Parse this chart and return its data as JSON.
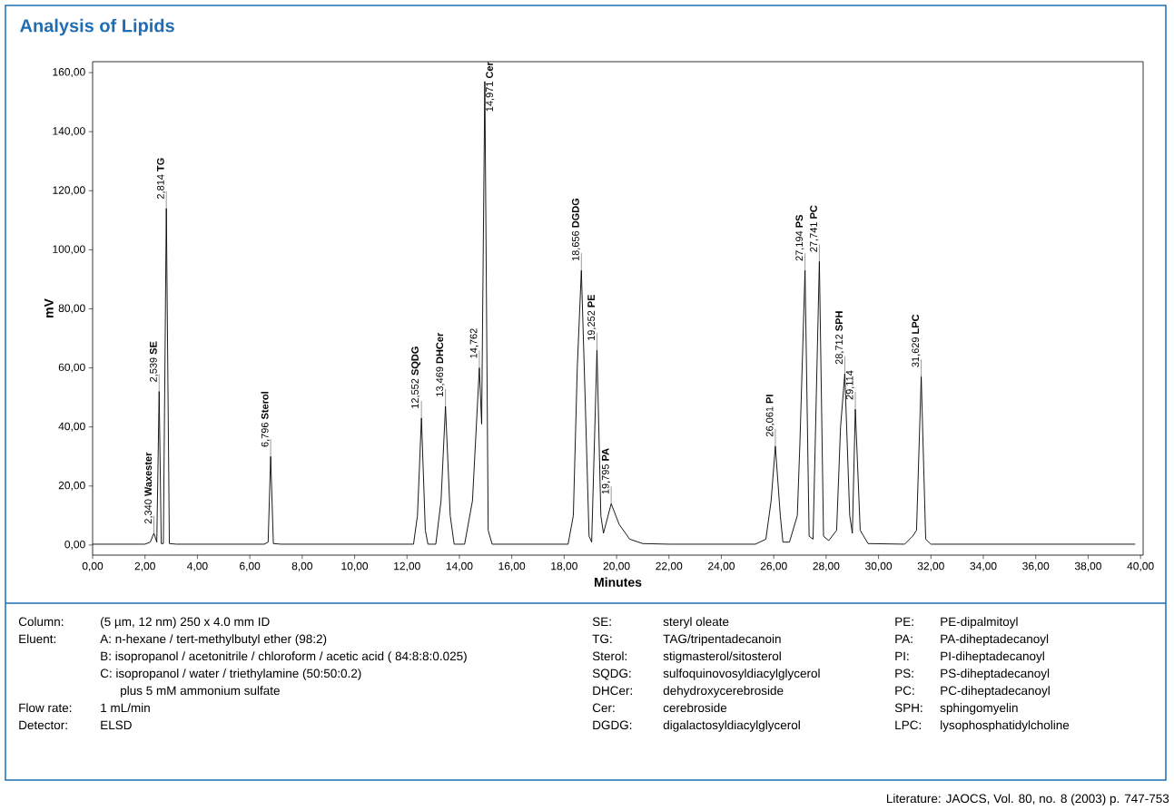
{
  "chart_data": {
    "type": "line",
    "title": "Analysis of Lipids",
    "xlabel": "Minutes",
    "ylabel": "mV",
    "color": "#000000",
    "xlim": [
      0,
      40.1
    ],
    "ylim": [
      -3.4,
      163.7
    ],
    "xticks": [
      {
        "value": 0,
        "label": "0,00"
      },
      {
        "value": 2,
        "label": "2,00"
      },
      {
        "value": 4,
        "label": "4,00"
      },
      {
        "value": 6,
        "label": "6,00"
      },
      {
        "value": 8,
        "label": "8,00"
      },
      {
        "value": 10,
        "label": "10,00"
      },
      {
        "value": 12,
        "label": "12,00"
      },
      {
        "value": 14,
        "label": "14,00"
      },
      {
        "value": 16,
        "label": "16,00"
      },
      {
        "value": 18,
        "label": "18,00"
      },
      {
        "value": 20,
        "label": "20,00"
      },
      {
        "value": 22,
        "label": "22,00"
      },
      {
        "value": 24,
        "label": "24,00"
      },
      {
        "value": 26,
        "label": "26,00"
      },
      {
        "value": 28,
        "label": "28,00"
      },
      {
        "value": 30,
        "label": "30,00"
      },
      {
        "value": 32,
        "label": "32,00"
      },
      {
        "value": 34,
        "label": "34,00"
      },
      {
        "value": 36,
        "label": "36,00"
      },
      {
        "value": 38,
        "label": "38,00"
      },
      {
        "value": 40,
        "label": "40,00"
      }
    ],
    "yticks": [
      {
        "value": 0,
        "label": "0,00"
      },
      {
        "value": 20,
        "label": "20,00"
      },
      {
        "value": 40,
        "label": "40,00"
      },
      {
        "value": 60,
        "label": "60,00"
      },
      {
        "value": 80,
        "label": "80,00"
      },
      {
        "value": 100,
        "label": "100,00"
      },
      {
        "value": 120,
        "label": "120,00"
      },
      {
        "value": 140,
        "label": "140,00"
      },
      {
        "value": 160,
        "label": "160,00"
      }
    ],
    "x": [
      0,
      2.0,
      2.2,
      2.34,
      2.45,
      2.539,
      2.62,
      2.7,
      2.814,
      2.93,
      3.2,
      6.55,
      6.7,
      6.796,
      6.9,
      7.2,
      12.25,
      12.4,
      12.552,
      12.7,
      12.8,
      13.1,
      13.3,
      13.469,
      13.65,
      13.8,
      14.2,
      14.5,
      14.762,
      14.85,
      14.971,
      15.1,
      15.25,
      18.15,
      18.35,
      18.5,
      18.656,
      18.8,
      18.95,
      19.05,
      19.252,
      19.4,
      19.5,
      19.795,
      20.1,
      20.5,
      21,
      22,
      25.3,
      25.7,
      25.9,
      26.061,
      26.25,
      26.35,
      26.6,
      26.9,
      27.0,
      27.194,
      27.35,
      27.5,
      27.741,
      27.9,
      28.1,
      28.4,
      28.55,
      28.712,
      28.9,
      29.0,
      29.114,
      29.3,
      29.6,
      31.0,
      31.3,
      31.45,
      31.629,
      31.8,
      32.0,
      39.8
    ],
    "values": [
      0.3,
      0.3,
      1,
      4,
      1,
      52,
      0.5,
      0.5,
      114,
      0.5,
      0.3,
      0.3,
      1,
      30,
      0.5,
      0.3,
      0.3,
      10,
      43,
      5,
      0.3,
      0.3,
      15,
      47,
      10,
      0.3,
      0.3,
      15,
      60,
      41,
      157,
      5,
      0.3,
      0.3,
      10,
      60,
      93,
      50,
      3,
      1,
      66,
      10,
      4,
      14,
      7,
      2,
      0.5,
      0.3,
      0.3,
      2,
      15,
      33.5,
      10,
      1,
      1,
      10,
      35,
      93,
      3,
      2,
      96,
      3,
      1.5,
      5,
      40,
      58,
      10,
      4,
      46,
      5,
      0.5,
      0.3,
      3,
      5,
      57,
      2,
      0.3,
      0.3
    ],
    "annotations": [
      {
        "text": "2,340 **Waxester**",
        "x": 2.34,
        "y": 4
      },
      {
        "text": "2,539 **SE**",
        "x": 2.539,
        "y": 52
      },
      {
        "text": "2,814 **TG**",
        "x": 2.814,
        "y": 114
      },
      {
        "text": "6,796 **Sterol**",
        "x": 6.796,
        "y": 30
      },
      {
        "text": "12,552 **SQDG**",
        "x": 12.552,
        "y": 43
      },
      {
        "text": "13,469 **DHCer**",
        "x": 13.469,
        "y": 47
      },
      {
        "text": "14,762",
        "x": 14.762,
        "y": 60
      },
      {
        "text": "14,971 **Cer**",
        "x": 14.971,
        "y": 157
      },
      {
        "text": "18,656 **DGDG**",
        "x": 18.656,
        "y": 93
      },
      {
        "text": "19,252 **PE**",
        "x": 19.252,
        "y": 66
      },
      {
        "text": "19,795 **PA**",
        "x": 19.795,
        "y": 14
      },
      {
        "text": "26,061 **PI**",
        "x": 26.061,
        "y": 33.5
      },
      {
        "text": "27,194 **PS**",
        "x": 27.194,
        "y": 93
      },
      {
        "text": "27,741 **PC**",
        "x": 27.741,
        "y": 96
      },
      {
        "text": "28,712 **SPH**",
        "x": 28.712,
        "y": 58
      },
      {
        "text": "29,114",
        "x": 29.114,
        "y": 46
      },
      {
        "text": "31,629 **LPC**",
        "x": 31.629,
        "y": 57
      },
      "Column:",
      "(5 µm, 12 nm) 250 x 4.0 mm ID",
      "Eluent:",
      "A: n-hexane / tert-methylbutyl ether (98:2)",
      "B: isopropanol / acetonitrile / chloroform / acetic acid ( 84:8:8:0.025)",
      "C: isopropanol / water / triethylamine (50:50:0.2)",
      "plus 5 mM ammonium sulfate",
      "Flow rate:",
      "1 mL/min",
      "Detector:",
      "ELSD",
      "SE:",
      "steryl oleate",
      "TG:",
      "TAG/tripentadecanoin",
      "Sterol:",
      "stigmasterol/sitosterol",
      "SQDG:",
      "sulfoquinovosyldiacylglycerol",
      "DHCer:",
      "dehydroxycerebroside",
      "Cer:",
      "cerebroside",
      "DGDG:",
      "digalactosyldiacylglycerol",
      "PE:",
      "PE-dipalmitoyl",
      "PA:",
      "PA-diheptadecanoyl",
      "PI:",
      "PI-diheptadecanoyl",
      "PS:",
      "PS-diheptadecanoyl",
      "PC:",
      "PC-diheptadecanoyl",
      "SPH:",
      "sphingomyelin",
      "LPC:",
      "lysophosphatidylcholine",
      "Literature: JAOCS, Vol. 80, no. 8 (2003) p. 747-753"
    ]
  }
}
